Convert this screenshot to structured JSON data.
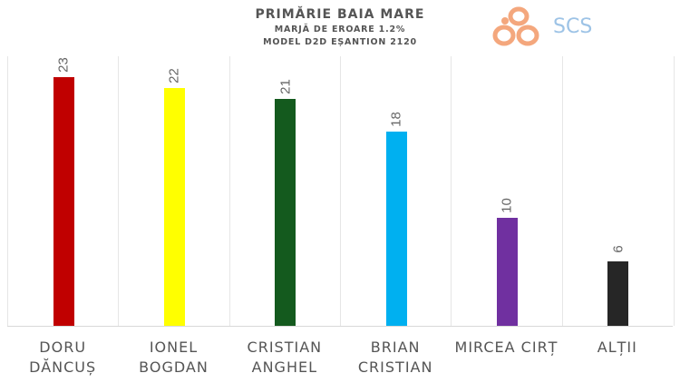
{
  "header": {
    "title": "PRIMĂRIE BAIA MARE",
    "subtitle1": "MARJĂ DE EROARE 1.2%",
    "subtitle2": "MODEL D2D EȘANTION 2120",
    "logo_text": "SCS",
    "logo_icon": "scs-circles-logo-icon"
  },
  "chart_data": {
    "type": "bar",
    "title": "PRIMĂRIE BAIA MARE",
    "subtitle": [
      "MARJĂ DE EROARE 1.2%",
      "MODEL D2D EȘANTION 2120"
    ],
    "categories": [
      "DORU DĂNCUȘ",
      "IONEL BOGDAN",
      "CRISTIAN ANGHEL",
      "BRIAN CRISTIAN",
      "MIRCEA CIRȚ",
      "ALȚII"
    ],
    "values": [
      23,
      22,
      21,
      18,
      10,
      6
    ],
    "colors": [
      "#c00000",
      "#ffff00",
      "#145a1e",
      "#00b0f0",
      "#7030a0",
      "#262626"
    ],
    "xlabel": "",
    "ylabel": "",
    "ylim": [
      0,
      25
    ],
    "grid": "vertical category separators",
    "legend": "none",
    "data_labels": "rotated above bars"
  },
  "labels": [
    {
      "line1": "DORU",
      "line2": "DĂNCUȘ"
    },
    {
      "line1": "IONEL",
      "line2": "BOGDAN"
    },
    {
      "line1": "CRISTIAN",
      "line2": "ANGHEL"
    },
    {
      "line1": "BRIAN",
      "line2": "CRISTIAN"
    },
    {
      "line1": "MIRCEA CIRȚ",
      "line2": ""
    },
    {
      "line1": "ALȚII",
      "line2": ""
    }
  ]
}
